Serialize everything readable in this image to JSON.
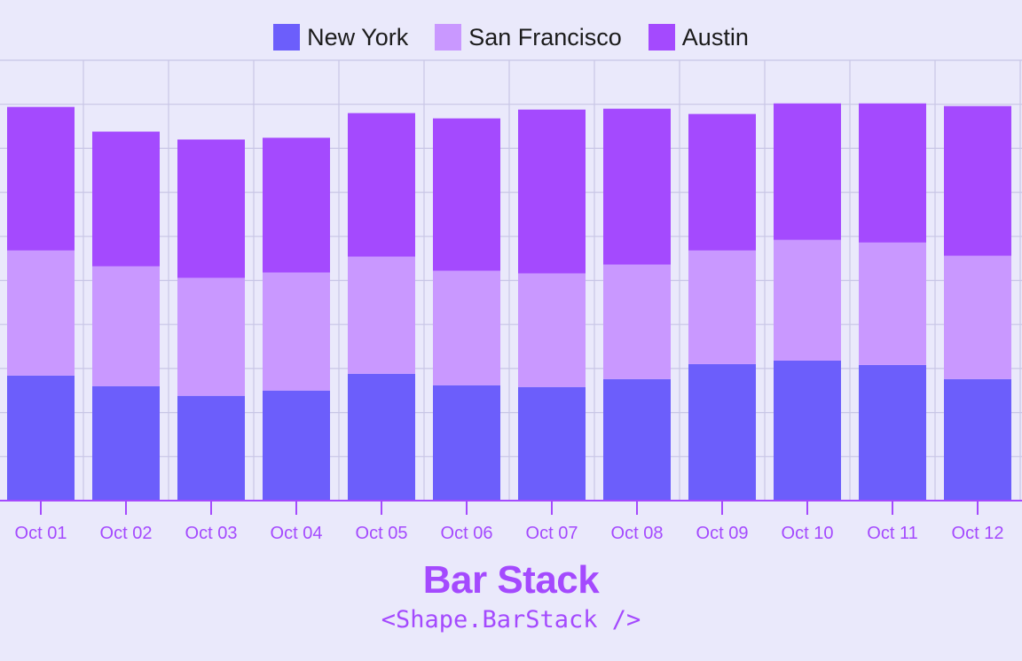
{
  "legend": {
    "items": [
      {
        "label": "New York",
        "color": "#6c5efb"
      },
      {
        "label": "San Francisco",
        "color": "#c998ff"
      },
      {
        "label": "Austin",
        "color": "#a44afe"
      }
    ]
  },
  "chart_data": {
    "type": "bar",
    "stacked": true,
    "categories": [
      "Oct 01",
      "Oct 02",
      "Oct 03",
      "Oct 04",
      "Oct 05",
      "Oct 06",
      "Oct 07",
      "Oct 08",
      "Oct 09",
      "Oct 10",
      "Oct 11",
      "Oct 12"
    ],
    "series": [
      {
        "name": "New York",
        "color": "#6c5efb",
        "values": [
          142,
          130,
          119,
          125,
          144,
          131,
          129,
          138,
          155,
          159,
          154,
          138
        ]
      },
      {
        "name": "San Francisco",
        "color": "#c998ff",
        "values": [
          142,
          136,
          134,
          134,
          133,
          130,
          129,
          130,
          129,
          137,
          139,
          140
        ]
      },
      {
        "name": "Austin",
        "color": "#a44afe",
        "values": [
          163,
          153,
          157,
          153,
          163,
          173,
          186,
          177,
          155,
          155,
          158,
          170
        ]
      }
    ],
    "ylim": [
      0,
      500
    ],
    "grid": true,
    "legend_position": "top-center",
    "tick_color": "#a44afe",
    "grid_color": "#c8c6e6"
  },
  "footer": {
    "title": "Bar Stack",
    "subtitle": "<Shape.BarStack />"
  }
}
